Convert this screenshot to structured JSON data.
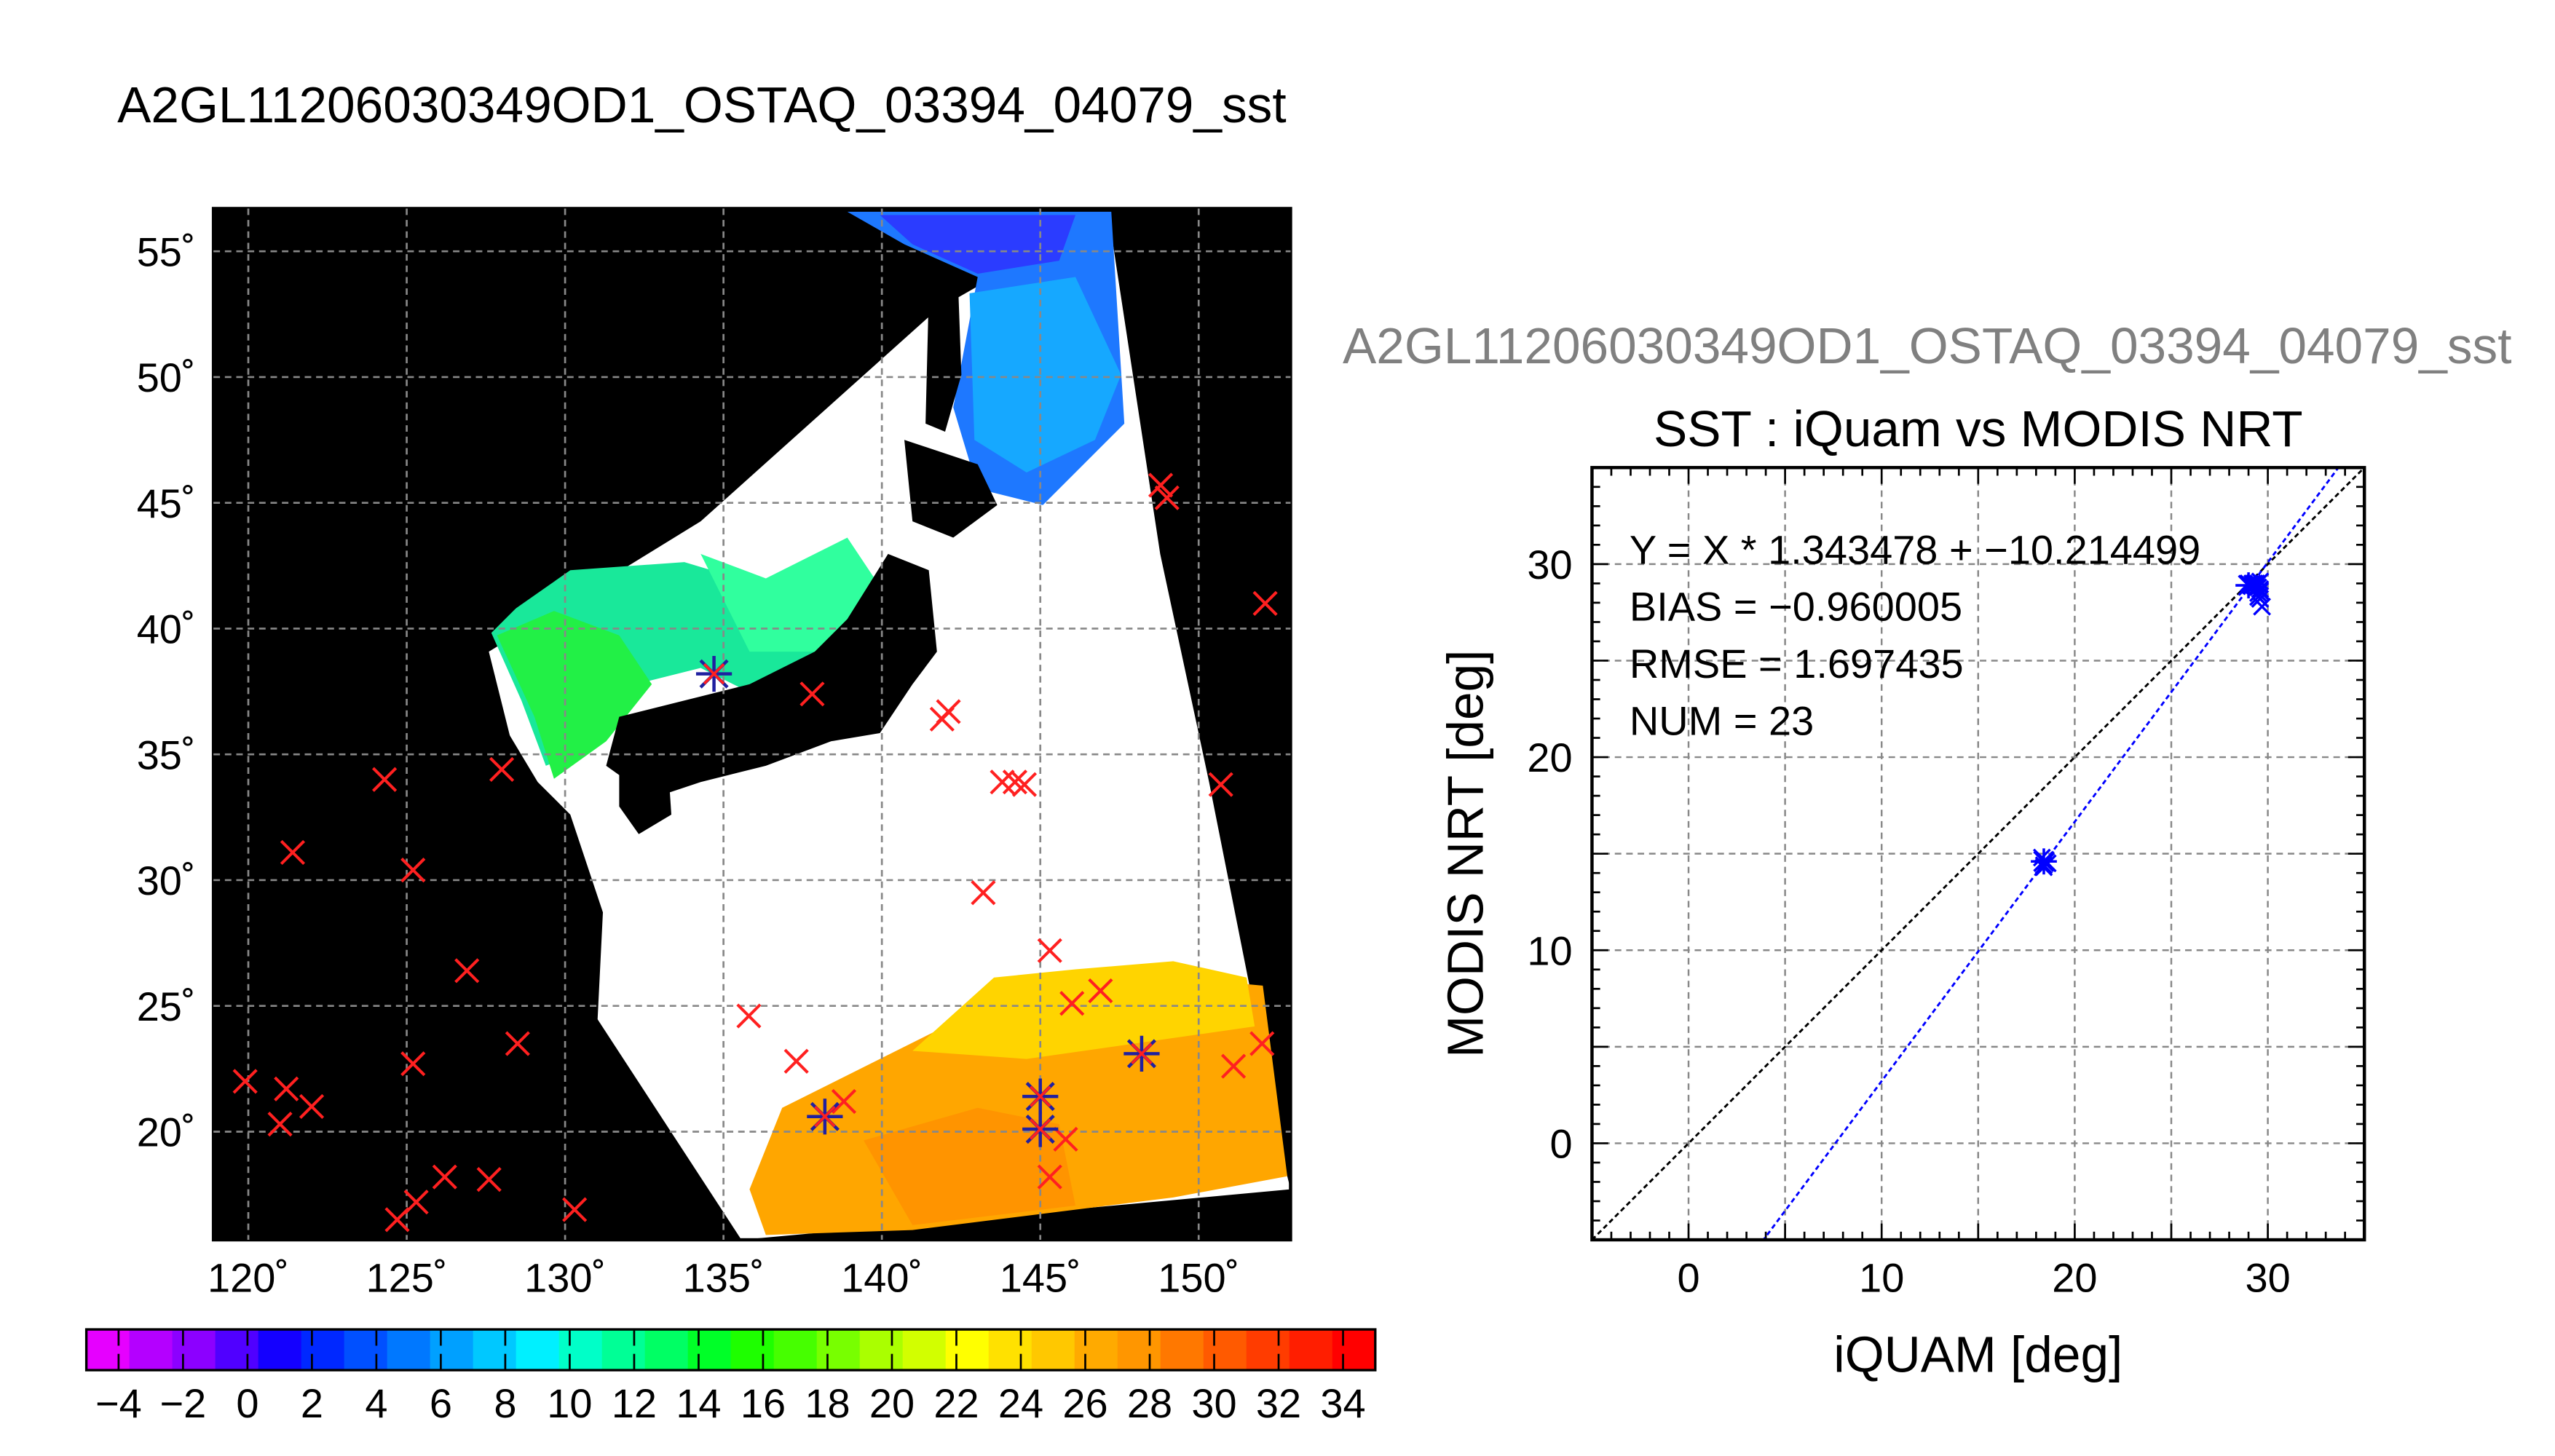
{
  "main_title": "A2GL11206030349OD1_OSTAQ_03394_04079_sst",
  "scatter_title": "A2GL11206030349OD1_OSTAQ_03394_04079_sst",
  "chart_data": [
    {
      "type": "heatmap",
      "title": "",
      "x_tick_labels": [
        "120˚",
        "125˚",
        "130˚",
        "135˚",
        "140˚",
        "145˚",
        "150˚"
      ],
      "x_ticks": [
        120,
        125,
        130,
        135,
        140,
        145,
        150
      ],
      "y_tick_labels": [
        "55˚",
        "50˚",
        "45˚",
        "40˚",
        "35˚",
        "30˚",
        "25˚",
        "20˚"
      ],
      "y_ticks": [
        55,
        50,
        45,
        40,
        35,
        30,
        25,
        20
      ],
      "xlim": [
        118.9,
        152.9
      ],
      "ylim": [
        15.7,
        56.7
      ],
      "grid": true,
      "colorbar": {
        "range": [
          -5,
          35
        ],
        "tick_labels": [
          "−4",
          "−2",
          "0",
          "2",
          "4",
          "6",
          "8",
          "10",
          "12",
          "14",
          "16",
          "18",
          "20",
          "22",
          "24",
          "26",
          "28",
          "30",
          "32",
          "34"
        ],
        "ticks": [
          -4,
          -2,
          0,
          2,
          4,
          6,
          8,
          10,
          12,
          14,
          16,
          18,
          20,
          22,
          24,
          26,
          28,
          30,
          32,
          34
        ]
      },
      "matchup_points": [
        {
          "lon": 148.8,
          "lat": 45.7,
          "marker": "x"
        },
        {
          "lon": 149.0,
          "lat": 45.2,
          "marker": "x"
        },
        {
          "lon": 152.1,
          "lat": 41.0,
          "marker": "x"
        },
        {
          "lon": 137.8,
          "lat": 37.4,
          "marker": "x"
        },
        {
          "lon": 141.9,
          "lat": 36.4,
          "marker": "x"
        },
        {
          "lon": 142.1,
          "lat": 36.7,
          "marker": "x"
        },
        {
          "lon": 143.8,
          "lat": 33.9,
          "marker": "x"
        },
        {
          "lon": 144.2,
          "lat": 33.9,
          "marker": "x"
        },
        {
          "lon": 144.5,
          "lat": 33.8,
          "marker": "x"
        },
        {
          "lon": 150.7,
          "lat": 33.8,
          "marker": "x"
        },
        {
          "lon": 124.3,
          "lat": 34.0,
          "marker": "x"
        },
        {
          "lon": 128.0,
          "lat": 34.4,
          "marker": "x"
        },
        {
          "lon": 121.4,
          "lat": 31.1,
          "marker": "x"
        },
        {
          "lon": 125.2,
          "lat": 30.4,
          "marker": "x"
        },
        {
          "lon": 143.2,
          "lat": 29.5,
          "marker": "x"
        },
        {
          "lon": 145.3,
          "lat": 27.2,
          "marker": "x"
        },
        {
          "lon": 126.9,
          "lat": 26.4,
          "marker": "x"
        },
        {
          "lon": 146.0,
          "lat": 25.1,
          "marker": "x"
        },
        {
          "lon": 146.9,
          "lat": 25.6,
          "marker": "x"
        },
        {
          "lon": 135.8,
          "lat": 24.6,
          "marker": "x"
        },
        {
          "lon": 128.5,
          "lat": 23.5,
          "marker": "x"
        },
        {
          "lon": 152.0,
          "lat": 23.5,
          "marker": "x"
        },
        {
          "lon": 137.3,
          "lat": 22.8,
          "marker": "x"
        },
        {
          "lon": 125.2,
          "lat": 22.7,
          "marker": "x"
        },
        {
          "lon": 151.1,
          "lat": 22.6,
          "marker": "x"
        },
        {
          "lon": 121.2,
          "lat": 21.7,
          "marker": "x"
        },
        {
          "lon": 119.9,
          "lat": 22.0,
          "marker": "x"
        },
        {
          "lon": 122.0,
          "lat": 21.0,
          "marker": "x"
        },
        {
          "lon": 138.8,
          "lat": 21.2,
          "marker": "x"
        },
        {
          "lon": 121.0,
          "lat": 20.3,
          "marker": "x"
        },
        {
          "lon": 145.8,
          "lat": 19.7,
          "marker": "x"
        },
        {
          "lon": 145.3,
          "lat": 18.2,
          "marker": "x"
        },
        {
          "lon": 126.2,
          "lat": 18.2,
          "marker": "x"
        },
        {
          "lon": 127.6,
          "lat": 18.1,
          "marker": "x"
        },
        {
          "lon": 125.3,
          "lat": 17.2,
          "marker": "x"
        },
        {
          "lon": 130.3,
          "lat": 16.9,
          "marker": "x"
        },
        {
          "lon": 124.7,
          "lat": 16.5,
          "marker": "x"
        },
        {
          "lon": 134.7,
          "lat": 38.2,
          "marker": "asterisk"
        },
        {
          "lon": 138.2,
          "lat": 20.6,
          "marker": "asterisk"
        },
        {
          "lon": 145.0,
          "lat": 21.4,
          "marker": "asterisk"
        },
        {
          "lon": 145.0,
          "lat": 20.1,
          "marker": "asterisk"
        },
        {
          "lon": 148.2,
          "lat": 23.1,
          "marker": "asterisk"
        }
      ]
    },
    {
      "type": "scatter",
      "title": "SST : iQuam vs MODIS NRT",
      "xlabel": "iQUAM [deg]",
      "ylabel": "MODIS NRT [deg]",
      "xlim": [
        -5,
        35
      ],
      "ylim": [
        -5,
        35
      ],
      "x_ticks": [
        0,
        10,
        20,
        30
      ],
      "y_ticks": [
        0,
        10,
        20,
        30
      ],
      "grid": true,
      "annotations": [
        "Y = X * 1.343478 + −10.214499",
        "BIAS = −0.960005",
        "RMSE = 1.697435",
        "NUM = 23"
      ],
      "fit": {
        "slope": 1.343478,
        "intercept": -10.214499
      },
      "series": [
        {
          "marker": "x",
          "color": "#0000ff",
          "x": [
            18.4,
            18.5,
            18.3,
            18.6,
            18.4,
            29.1,
            29.3,
            29.5,
            29.6,
            29.2,
            29.4,
            29.6,
            29.5,
            29.7,
            29.0,
            29.3,
            29.5,
            29.6,
            29.4,
            29.2,
            29.5,
            29.6,
            29.3
          ],
          "y": [
            14.4,
            14.6,
            14.8,
            14.5,
            14.3,
            28.9,
            29.0,
            28.8,
            29.1,
            28.9,
            29.0,
            28.7,
            28.3,
            27.8,
            29.0,
            28.9,
            29.0,
            28.6,
            28.8,
            29.0,
            28.5,
            28.2,
            28.9
          ]
        },
        {
          "marker": "asterisk",
          "color": "#0000ff",
          "x": [
            18.4,
            29.0
          ],
          "y": [
            14.6,
            28.9
          ]
        }
      ],
      "reference_line": "y = x"
    }
  ]
}
